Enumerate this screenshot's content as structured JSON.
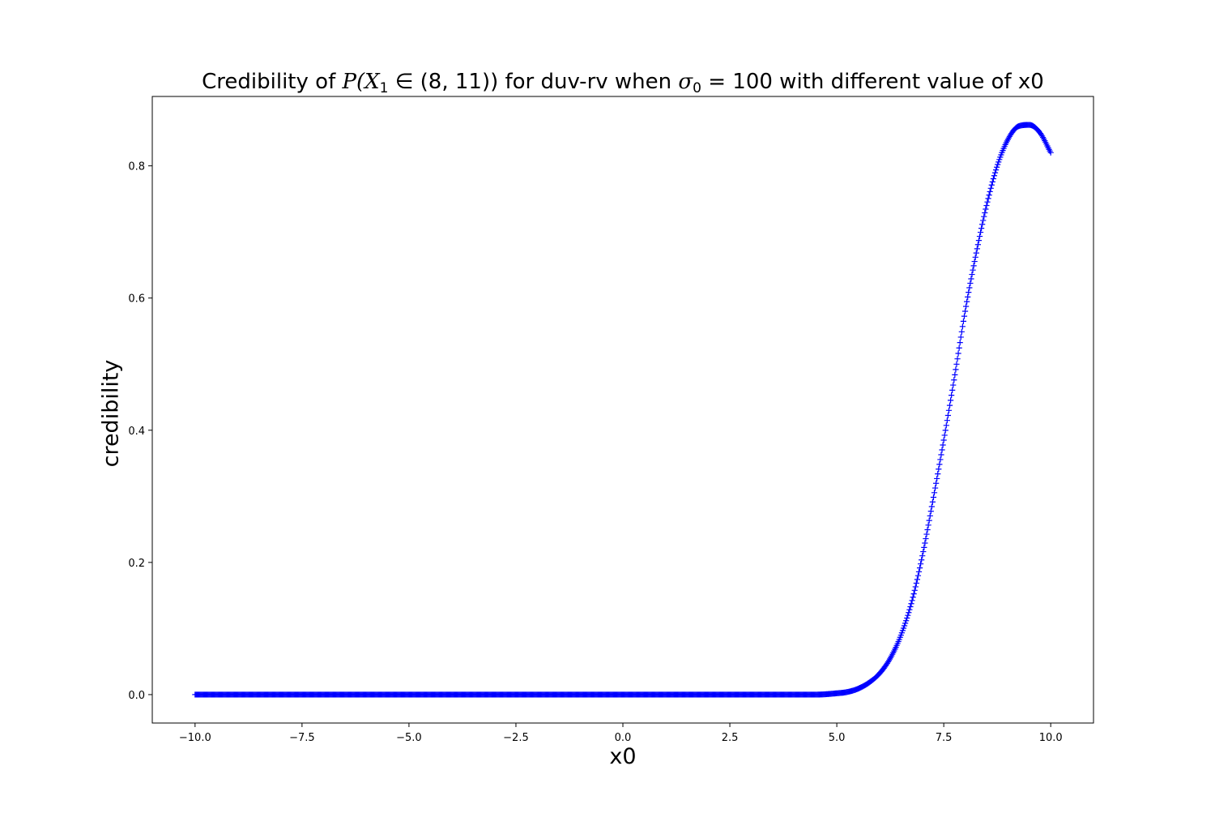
{
  "chart_data": {
    "type": "scatter",
    "title": {
      "prefix": "Credibility of ",
      "prob_expr": "P(X",
      "prob_sub": "1",
      "prob_rest": " ∈ (8, 11))",
      "middle": " for duv-rv when ",
      "sigma_expr": "σ",
      "sigma_sub": "0",
      "sigma_rest": " = 100",
      "suffix": " with different value of x0"
    },
    "xlabel": "x0",
    "ylabel": "credibility",
    "xlim": [
      -11,
      11
    ],
    "ylim": [
      -0.043,
      0.905
    ],
    "xticks": [
      -10.0,
      -7.5,
      -5.0,
      -2.5,
      0.0,
      2.5,
      5.0,
      7.5,
      10.0
    ],
    "xtick_labels": [
      "−10.0",
      "−7.5",
      "−5.0",
      "−2.5",
      "0.0",
      "2.5",
      "5.0",
      "7.5",
      "10.0"
    ],
    "yticks": [
      0.0,
      0.2,
      0.4,
      0.6,
      0.8
    ],
    "ytick_labels": [
      "0.0",
      "0.2",
      "0.4",
      "0.6",
      "0.8"
    ],
    "marker": "+",
    "color": "#0000ff",
    "grid": false,
    "series": [
      {
        "x": [
          -10.0,
          -9.0,
          -8.0,
          -7.0,
          -6.0,
          -5.0,
          -4.0,
          -3.0,
          -2.0,
          -1.0,
          0.0,
          1.0,
          2.0,
          3.0,
          4.0,
          4.5,
          5.0,
          5.25,
          5.5,
          5.75,
          6.0,
          6.25,
          6.5,
          6.75,
          7.0,
          7.25,
          7.5,
          7.75,
          8.0,
          8.25,
          8.5,
          8.75,
          9.0,
          9.25,
          9.5,
          9.75,
          10.0
        ],
        "y": [
          0.0,
          0.0,
          0.0,
          0.0,
          0.0,
          0.0,
          0.0,
          0.0,
          0.0,
          0.0,
          0.0,
          0.0,
          0.0,
          0.0,
          0.0,
          0.0,
          0.002,
          0.004,
          0.009,
          0.018,
          0.032,
          0.055,
          0.09,
          0.14,
          0.21,
          0.295,
          0.385,
          0.48,
          0.58,
          0.665,
          0.74,
          0.8,
          0.84,
          0.86,
          0.862,
          0.85,
          0.82
        ]
      }
    ]
  }
}
